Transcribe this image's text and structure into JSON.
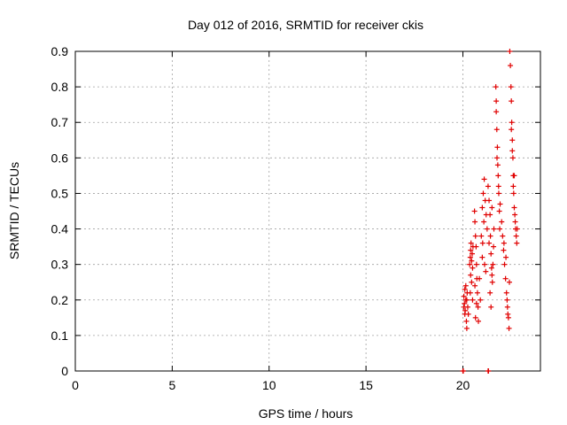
{
  "chart_data": {
    "type": "scatter",
    "title": "Day 012 of 2016, SRMTID for receiver ckis",
    "xlabel": "GPS time / hours",
    "ylabel": "SRMTID / TECUs",
    "xlim": [
      0,
      24
    ],
    "ylim": [
      0,
      0.9
    ],
    "xticks": [
      0,
      5,
      10,
      15,
      20
    ],
    "xtick_labels": [
      "0",
      "5",
      "10",
      "15",
      "20"
    ],
    "yticks": [
      0,
      0.1,
      0.2,
      0.3,
      0.4,
      0.5,
      0.6,
      0.7,
      0.8,
      0.9
    ],
    "ytick_labels": [
      "0",
      "0.1",
      "0.2",
      "0.3",
      "0.4",
      "0.5",
      "0.6",
      "0.7",
      "0.8",
      "0.9"
    ],
    "grid": true,
    "marker": "+",
    "color": "#e00000",
    "series": [
      {
        "name": "SRMTID",
        "points": [
          [
            20.0,
            0.0
          ],
          [
            20.02,
            0.0
          ],
          [
            21.3,
            0.0
          ],
          [
            21.32,
            0.0
          ],
          [
            20.05,
            0.21
          ],
          [
            20.08,
            0.19
          ],
          [
            20.1,
            0.23
          ],
          [
            20.12,
            0.17
          ],
          [
            20.15,
            0.2
          ],
          [
            20.18,
            0.14
          ],
          [
            20.2,
            0.12
          ],
          [
            20.22,
            0.22
          ],
          [
            20.25,
            0.18
          ],
          [
            20.1,
            0.16
          ],
          [
            20.15,
            0.24
          ],
          [
            20.2,
            0.2
          ],
          [
            20.05,
            0.18
          ],
          [
            20.28,
            0.16
          ],
          [
            20.35,
            0.3
          ],
          [
            20.38,
            0.32
          ],
          [
            20.4,
            0.34
          ],
          [
            20.42,
            0.36
          ],
          [
            20.45,
            0.31
          ],
          [
            20.48,
            0.33
          ],
          [
            20.5,
            0.29
          ],
          [
            20.4,
            0.27
          ],
          [
            20.45,
            0.25
          ],
          [
            20.52,
            0.35
          ],
          [
            20.38,
            0.22
          ],
          [
            20.5,
            0.2
          ],
          [
            20.6,
            0.45
          ],
          [
            20.62,
            0.42
          ],
          [
            20.65,
            0.38
          ],
          [
            20.68,
            0.35
          ],
          [
            20.7,
            0.3
          ],
          [
            20.72,
            0.26
          ],
          [
            20.75,
            0.22
          ],
          [
            20.78,
            0.18
          ],
          [
            20.65,
            0.15
          ],
          [
            20.7,
            0.19
          ],
          [
            20.62,
            0.24
          ],
          [
            20.8,
            0.14
          ],
          [
            20.85,
            0.26
          ],
          [
            20.9,
            0.2
          ],
          [
            21.0,
            0.46
          ],
          [
            21.05,
            0.5
          ],
          [
            21.1,
            0.54
          ],
          [
            21.15,
            0.48
          ],
          [
            21.2,
            0.44
          ],
          [
            21.25,
            0.4
          ],
          [
            21.02,
            0.36
          ],
          [
            21.08,
            0.42
          ],
          [
            21.12,
            0.3
          ],
          [
            21.18,
            0.28
          ],
          [
            20.95,
            0.38
          ],
          [
            21.0,
            0.32
          ],
          [
            21.3,
            0.52
          ],
          [
            21.35,
            0.48
          ],
          [
            21.4,
            0.44
          ],
          [
            21.42,
            0.38
          ],
          [
            21.45,
            0.33
          ],
          [
            21.48,
            0.29
          ],
          [
            21.5,
            0.27
          ],
          [
            21.52,
            0.25
          ],
          [
            21.55,
            0.3
          ],
          [
            21.58,
            0.35
          ],
          [
            21.6,
            0.4
          ],
          [
            21.4,
            0.22
          ],
          [
            21.45,
            0.18
          ],
          [
            21.5,
            0.46
          ],
          [
            21.35,
            0.36
          ],
          [
            21.7,
            0.8
          ],
          [
            21.72,
            0.73
          ],
          [
            21.75,
            0.68
          ],
          [
            21.78,
            0.63
          ],
          [
            21.8,
            0.58
          ],
          [
            21.82,
            0.55
          ],
          [
            21.85,
            0.5
          ],
          [
            21.88,
            0.45
          ],
          [
            21.9,
            0.4
          ],
          [
            21.72,
            0.76
          ],
          [
            21.76,
            0.6
          ],
          [
            21.84,
            0.52
          ],
          [
            21.92,
            0.47
          ],
          [
            22.0,
            0.42
          ],
          [
            22.05,
            0.38
          ],
          [
            22.1,
            0.34
          ],
          [
            22.15,
            0.3
          ],
          [
            22.2,
            0.26
          ],
          [
            22.25,
            0.22
          ],
          [
            22.3,
            0.18
          ],
          [
            22.32,
            0.16
          ],
          [
            22.35,
            0.15
          ],
          [
            22.28,
            0.2
          ],
          [
            22.22,
            0.32
          ],
          [
            22.12,
            0.36
          ],
          [
            22.4,
            0.25
          ],
          [
            22.38,
            0.12
          ],
          [
            22.42,
            0.9
          ],
          [
            22.45,
            0.86
          ],
          [
            22.48,
            0.8
          ],
          [
            22.5,
            0.76
          ],
          [
            22.52,
            0.7
          ],
          [
            22.55,
            0.65
          ],
          [
            22.58,
            0.6
          ],
          [
            22.6,
            0.55
          ],
          [
            22.62,
            0.5
          ],
          [
            22.65,
            0.46
          ],
          [
            22.68,
            0.44
          ],
          [
            22.7,
            0.42
          ],
          [
            22.72,
            0.4
          ],
          [
            22.75,
            0.38
          ],
          [
            22.78,
            0.36
          ],
          [
            22.5,
            0.68
          ],
          [
            22.55,
            0.62
          ],
          [
            22.6,
            0.52
          ],
          [
            22.8,
            0.4
          ],
          [
            22.65,
            0.55
          ]
        ]
      }
    ]
  }
}
